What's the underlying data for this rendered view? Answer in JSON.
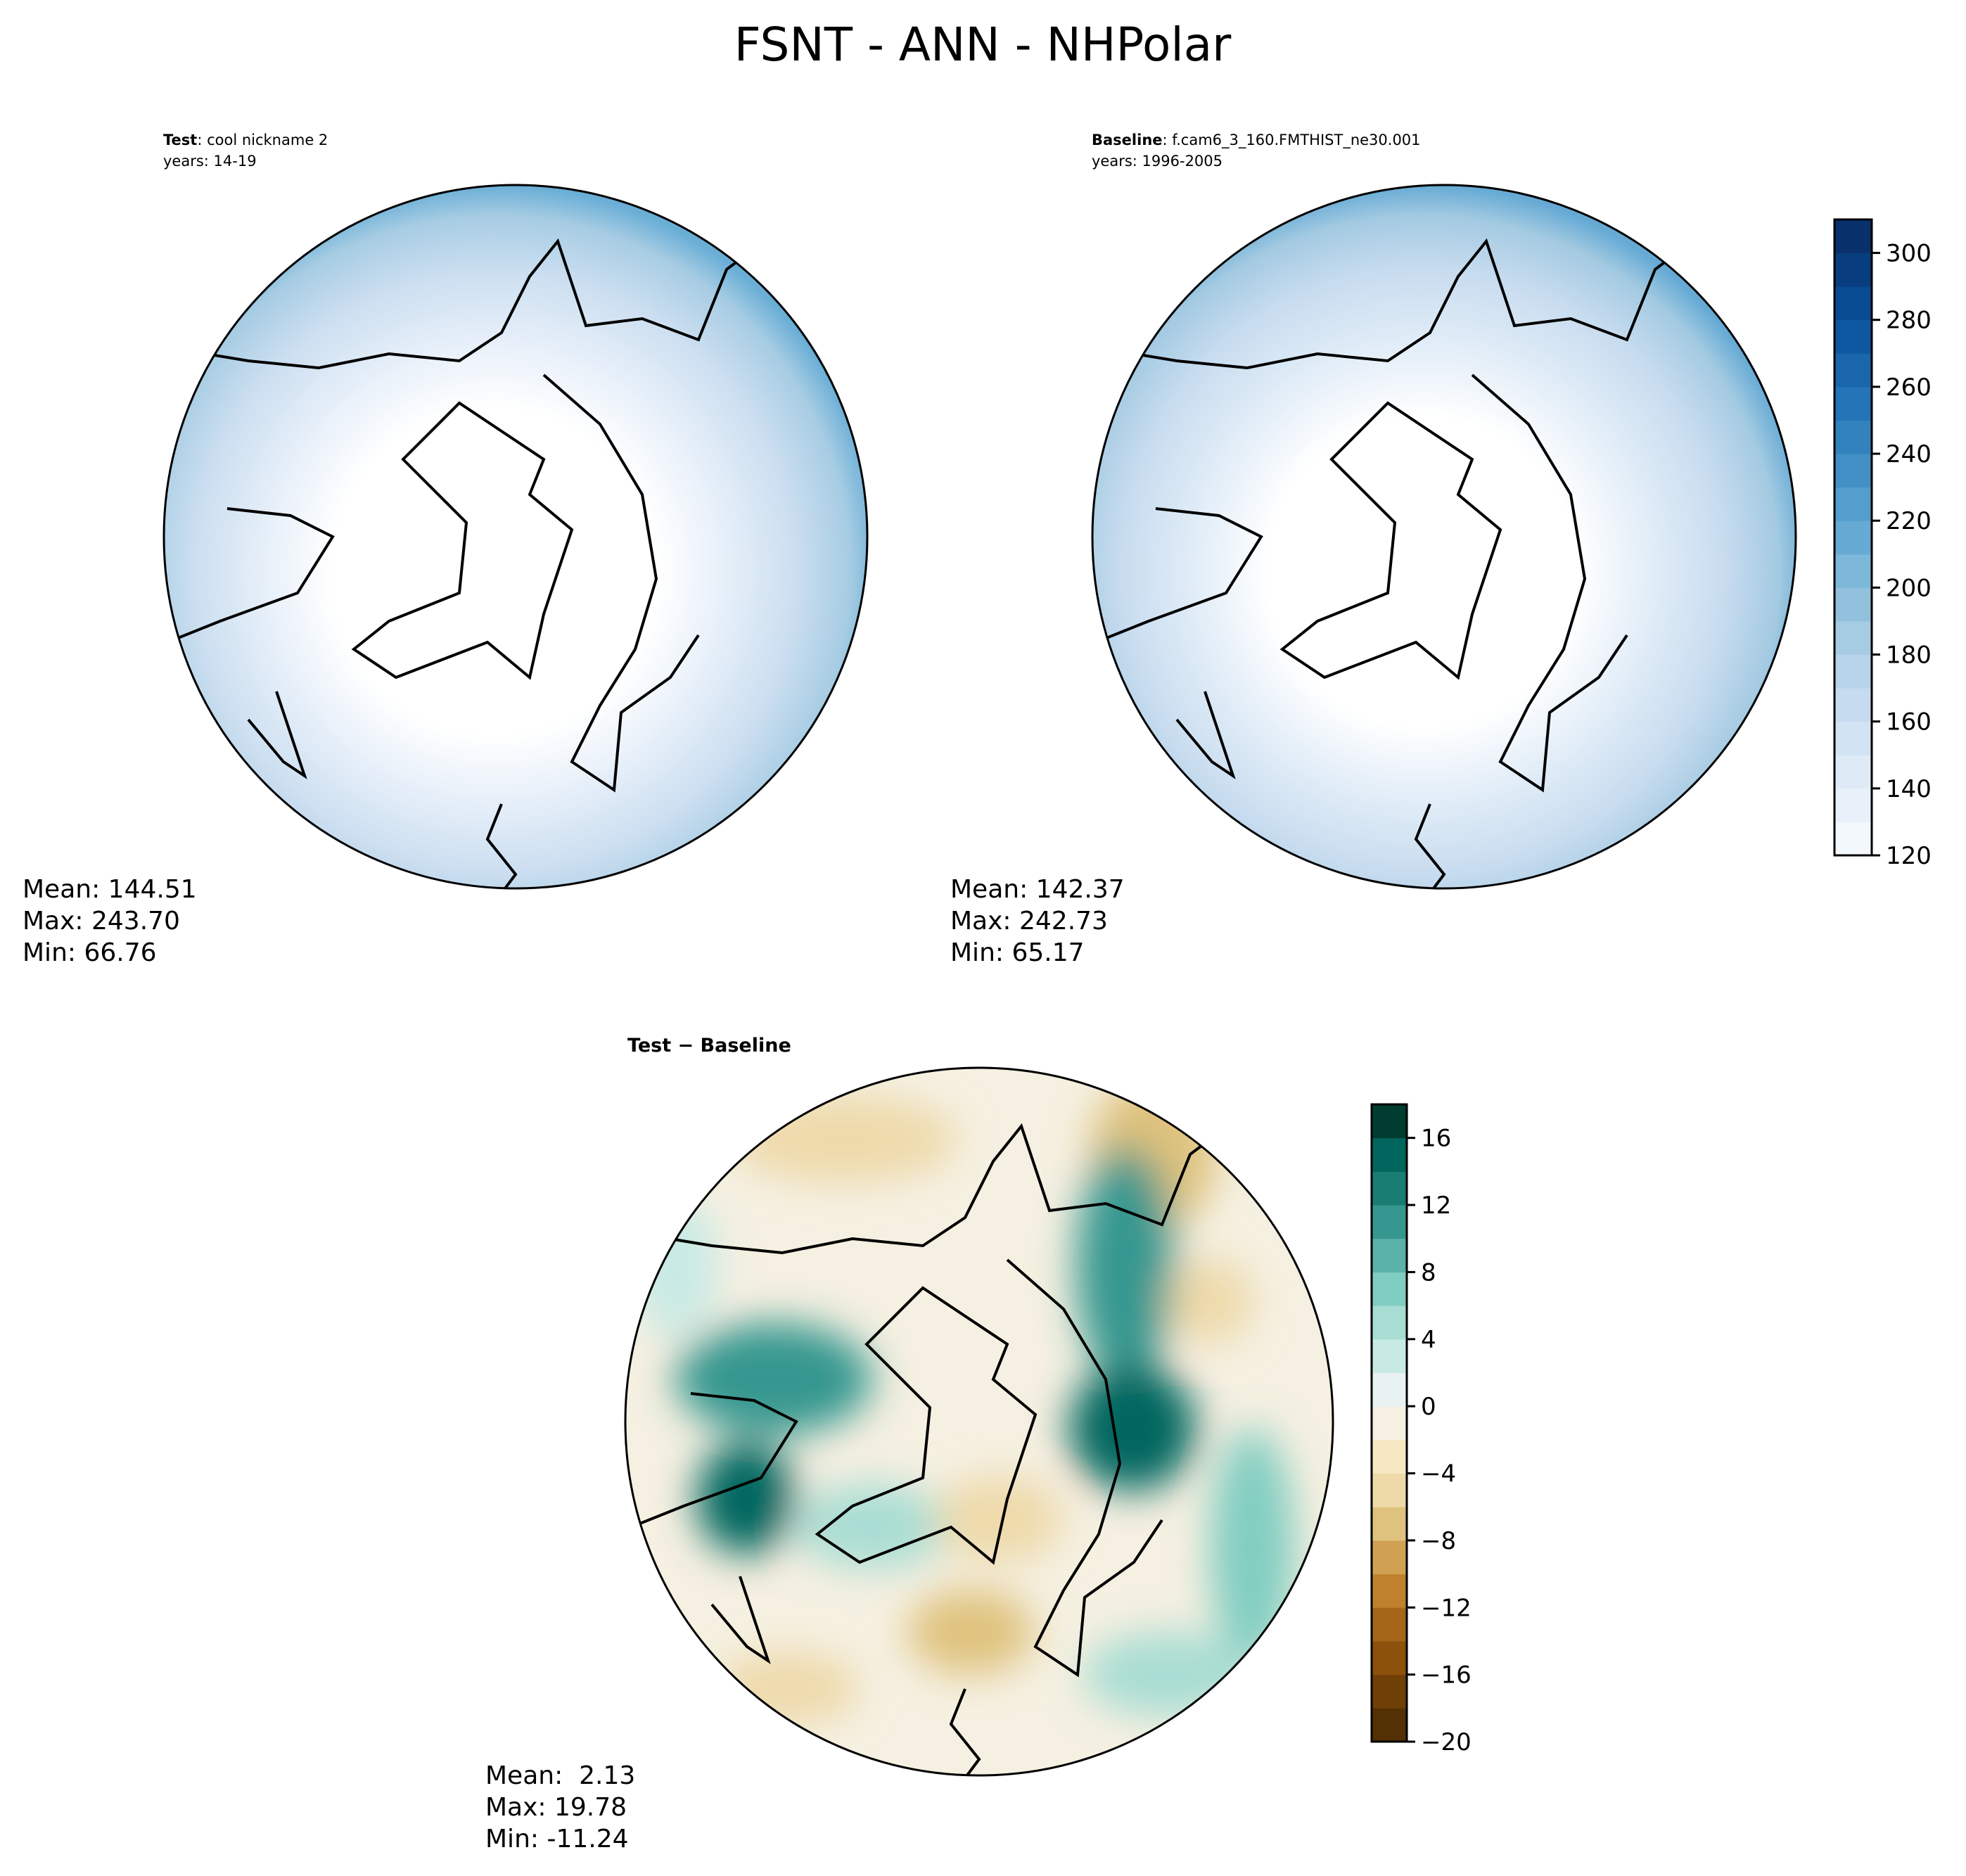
{
  "chart_data": [
    {
      "type": "heatmap",
      "projection": "north-polar-stereographic",
      "title": "FSNT - ANN - NHPolar",
      "panel": "test",
      "label_bold": "Test",
      "label_rest": ": cool nickname 2",
      "years": "years: 14-19",
      "stats": {
        "mean": "Mean: 144.51",
        "max": "Max: 243.70",
        "min": "Min: 66.76"
      },
      "field_range": [
        66.76,
        243.7
      ]
    },
    {
      "type": "heatmap",
      "projection": "north-polar-stereographic",
      "panel": "baseline",
      "label_bold": "Baseline",
      "label_rest": ": f.cam6_3_160.FMTHIST_ne30.001",
      "years": "years: 1996-2005",
      "stats": {
        "mean": "Mean: 142.37",
        "max": "Max: 242.73",
        "min": "Min: 65.17"
      },
      "field_range": [
        65.17,
        242.73
      ],
      "colorbar": {
        "range": [
          120,
          310
        ],
        "step": 10,
        "ticks": [
          120,
          140,
          160,
          180,
          200,
          220,
          240,
          260,
          280,
          300
        ],
        "colors": [
          "#f3f8fd",
          "#e8f1fa",
          "#deebf7",
          "#d2e3f3",
          "#c6dbef",
          "#b7d4ea",
          "#a6cce3",
          "#92c1de",
          "#7db8da",
          "#66aad4",
          "#539ecd",
          "#4290c5",
          "#3282be",
          "#2474b7",
          "#1966ad",
          "#0e58a2",
          "#084b93",
          "#083d7f",
          "#08306b"
        ]
      }
    },
    {
      "type": "heatmap",
      "projection": "north-polar-stereographic",
      "panel": "difference",
      "label_bold": "Test",
      "label_rest": " − Baseline",
      "stats": {
        "mean": "Mean:  2.13",
        "max": "Max: 19.78",
        "min": "Min: -11.24"
      },
      "field_range": [
        -11.24,
        19.78
      ],
      "colorbar": {
        "range": [
          -20,
          18
        ],
        "step": 2,
        "ticks": [
          -20,
          -16,
          -12,
          -8,
          -4,
          0,
          4,
          8,
          12,
          16
        ],
        "tick_labels": [
          "−20",
          "−16",
          "−12",
          "−8",
          "−4",
          "0",
          "4",
          "8",
          "12",
          "16"
        ],
        "colors": [
          "#543005",
          "#6f3f08",
          "#8c510a",
          "#a5661a",
          "#bf812d",
          "#d0a153",
          "#dfc27d",
          "#eed9a9",
          "#f6e8c3",
          "#f5f0e1",
          "#e8f3f1",
          "#c7eae5",
          "#a8ddd3",
          "#80cdc1",
          "#5ab2a8",
          "#35978f",
          "#1a7d74",
          "#01665e",
          "#003c30"
        ]
      }
    }
  ]
}
